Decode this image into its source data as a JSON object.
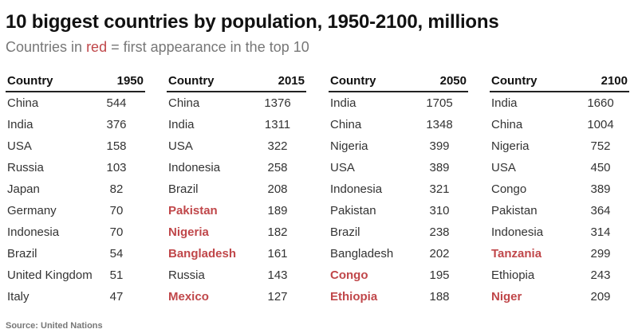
{
  "title": "10 biggest countries by population, 1950-2100, millions",
  "subtitle": {
    "prefix": "Countries in ",
    "highlight": "red",
    "suffix": " = first appearance in the top 10"
  },
  "source": "Source: United Nations",
  "colors": {
    "highlight": "#c0474a",
    "text": "#333333",
    "subtitle": "#777777"
  },
  "chart_data": {
    "type": "table",
    "title": "10 biggest countries by population, 1950-2100, millions",
    "tables": [
      {
        "header": [
          "Country",
          "1950"
        ],
        "rows": [
          {
            "country": "China",
            "value": "544",
            "new": false
          },
          {
            "country": "India",
            "value": "376",
            "new": false
          },
          {
            "country": "USA",
            "value": "158",
            "new": false
          },
          {
            "country": "Russia",
            "value": "103",
            "new": false
          },
          {
            "country": "Japan",
            "value": "82",
            "new": false
          },
          {
            "country": "Germany",
            "value": "70",
            "new": false
          },
          {
            "country": "Indonesia",
            "value": "70",
            "new": false
          },
          {
            "country": "Brazil",
            "value": "54",
            "new": false
          },
          {
            "country": "United Kingdom",
            "value": "51",
            "new": false
          },
          {
            "country": "Italy",
            "value": "47",
            "new": false
          }
        ]
      },
      {
        "header": [
          "Country",
          "2015"
        ],
        "rows": [
          {
            "country": "China",
            "value": "1376",
            "new": false
          },
          {
            "country": "India",
            "value": "1311",
            "new": false
          },
          {
            "country": "USA",
            "value": "322",
            "new": false
          },
          {
            "country": "Indonesia",
            "value": "258",
            "new": false
          },
          {
            "country": "Brazil",
            "value": "208",
            "new": false
          },
          {
            "country": "Pakistan",
            "value": "189",
            "new": true
          },
          {
            "country": "Nigeria",
            "value": "182",
            "new": true
          },
          {
            "country": "Bangladesh",
            "value": "161",
            "new": true
          },
          {
            "country": "Russia",
            "value": "143",
            "new": false
          },
          {
            "country": "Mexico",
            "value": "127",
            "new": true
          }
        ]
      },
      {
        "header": [
          "Country",
          "2050"
        ],
        "rows": [
          {
            "country": "India",
            "value": "1705",
            "new": false
          },
          {
            "country": "China",
            "value": "1348",
            "new": false
          },
          {
            "country": "Nigeria",
            "value": "399",
            "new": false
          },
          {
            "country": "USA",
            "value": "389",
            "new": false
          },
          {
            "country": "Indonesia",
            "value": "321",
            "new": false
          },
          {
            "country": "Pakistan",
            "value": "310",
            "new": false
          },
          {
            "country": "Brazil",
            "value": "238",
            "new": false
          },
          {
            "country": "Bangladesh",
            "value": "202",
            "new": false
          },
          {
            "country": "Congo",
            "value": "195",
            "new": true
          },
          {
            "country": "Ethiopia",
            "value": "188",
            "new": true
          }
        ]
      },
      {
        "header": [
          "Country",
          "2100"
        ],
        "rows": [
          {
            "country": "India",
            "value": "1660",
            "new": false
          },
          {
            "country": "China",
            "value": "1004",
            "new": false
          },
          {
            "country": "Nigeria",
            "value": "752",
            "new": false
          },
          {
            "country": "USA",
            "value": "450",
            "new": false
          },
          {
            "country": "Congo",
            "value": "389",
            "new": false
          },
          {
            "country": "Pakistan",
            "value": "364",
            "new": false
          },
          {
            "country": "Indonesia",
            "value": "314",
            "new": false
          },
          {
            "country": "Tanzania",
            "value": "299",
            "new": true
          },
          {
            "country": "Ethiopia",
            "value": "243",
            "new": false
          },
          {
            "country": "Niger",
            "value": "209",
            "new": true
          }
        ]
      }
    ]
  }
}
